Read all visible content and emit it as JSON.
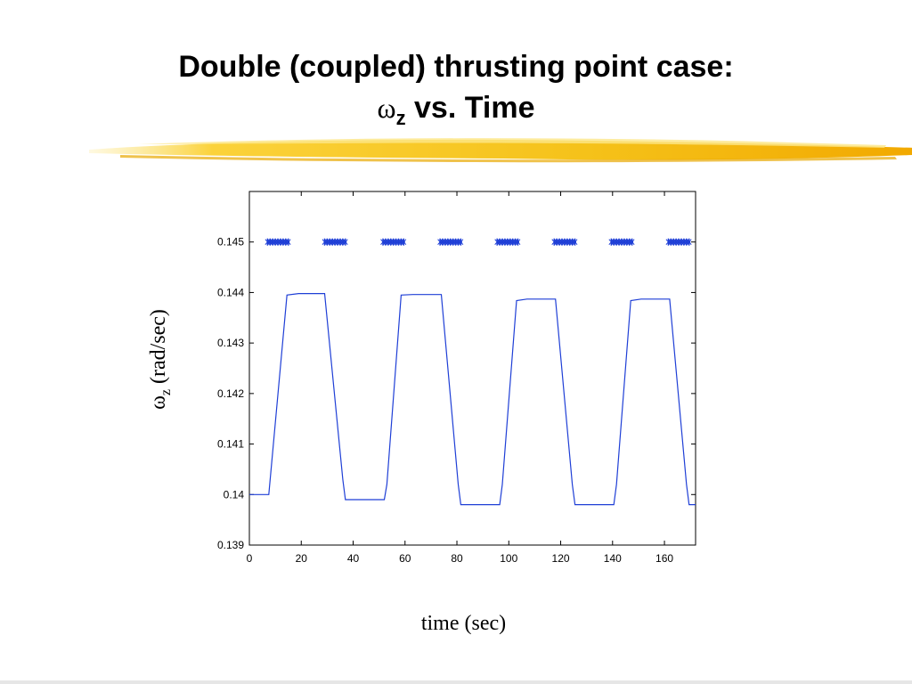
{
  "slide": {
    "title_line1": "Double (coupled) thrusting point case:",
    "title_symbol": "ω",
    "title_subscript": "z",
    "title_rest": " vs. Time",
    "accent_color": "#f5b800"
  },
  "chart_data": {
    "type": "line",
    "title": "",
    "xlabel": "time (sec)",
    "ylabel_symbol": "ω",
    "ylabel_subscript": "z",
    "ylabel_unit": " (rad/sec)",
    "xlim": [
      0,
      172
    ],
    "ylim": [
      0.139,
      0.146
    ],
    "x_ticks": [
      0,
      20,
      40,
      60,
      80,
      100,
      120,
      140,
      160
    ],
    "y_ticks": [
      0.139,
      0.14,
      0.141,
      0.142,
      0.143,
      0.144,
      0.145
    ],
    "y_tick_labels": [
      "0.139",
      "0.14",
      "0.141",
      "0.142",
      "0.143",
      "0.144",
      "0.145"
    ],
    "grid": false,
    "series": [
      {
        "type": "line",
        "color": "#1f3fd6",
        "x": [
          0,
          7.5,
          14.5,
          19,
          29,
          36,
          37,
          52,
          53,
          58.5,
          63,
          74,
          80.5,
          81.5,
          96.5,
          97.5,
          103,
          107,
          118,
          124.5,
          125.5,
          140.5,
          141.5,
          147,
          151,
          162,
          168.5,
          169.5,
          172
        ],
        "y": [
          0.14,
          0.14,
          0.14395,
          0.14398,
          0.14398,
          0.1403,
          0.1399,
          0.1399,
          0.1402,
          0.14395,
          0.14396,
          0.14396,
          0.1402,
          0.1398,
          0.1398,
          0.1402,
          0.14384,
          0.14387,
          0.14387,
          0.1402,
          0.1398,
          0.1398,
          0.1402,
          0.14384,
          0.14387,
          0.14387,
          0.1402,
          0.1398,
          0.1398
        ]
      },
      {
        "type": "markers",
        "marker": "*",
        "color": "#1f3fd6",
        "y_value": 0.145,
        "segments": [
          [
            7,
            15.5
          ],
          [
            29,
            37.5
          ],
          [
            51.5,
            60
          ],
          [
            73.5,
            82
          ],
          [
            95.5,
            104
          ],
          [
            117.5,
            126
          ],
          [
            139.5,
            148
          ],
          [
            161.5,
            170
          ]
        ]
      }
    ]
  }
}
